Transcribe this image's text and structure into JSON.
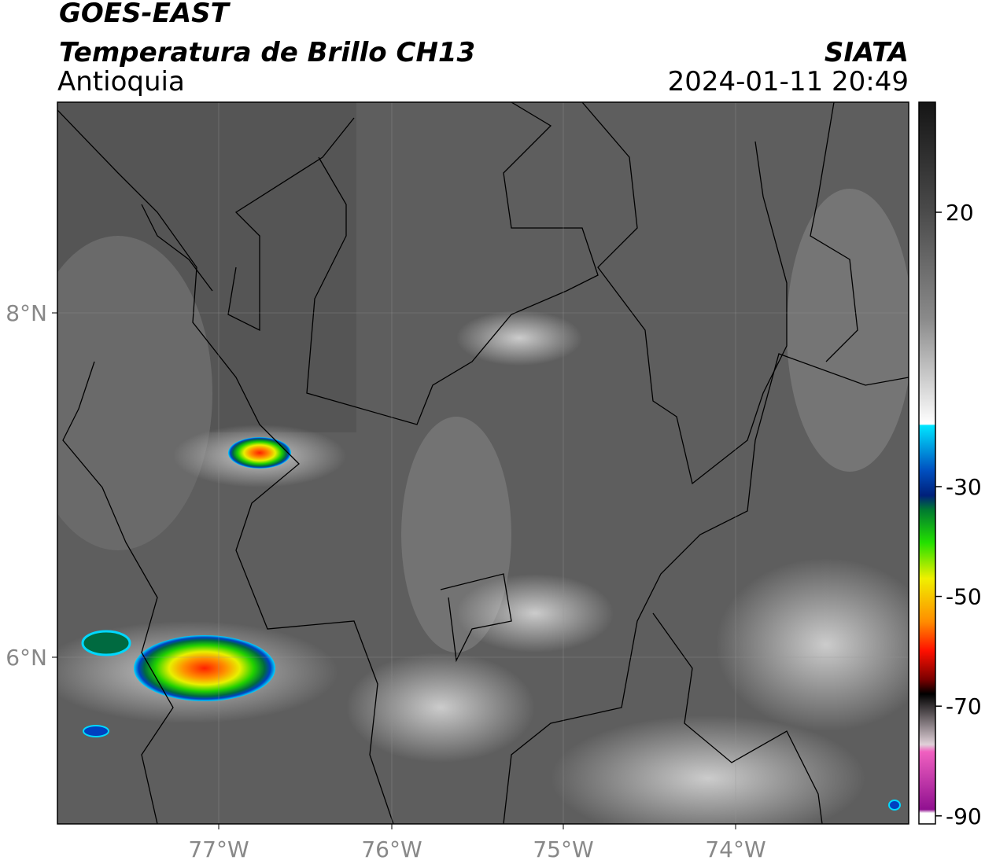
{
  "header": {
    "title_line_1": "GOES-EAST",
    "title_line_2": "Temperatura de Brillo CH13",
    "region": "Antioquia",
    "source": "SIATA",
    "datetime": "2024-01-11 20:49"
  },
  "map": {
    "lat_labels": [
      "8°N",
      "6°N"
    ],
    "lon_labels": [
      "77°W",
      "76°W",
      "75°W",
      "74°W"
    ]
  },
  "colorbar": {
    "ticks": [
      20,
      -30,
      -50,
      -70,
      -90
    ]
  }
}
